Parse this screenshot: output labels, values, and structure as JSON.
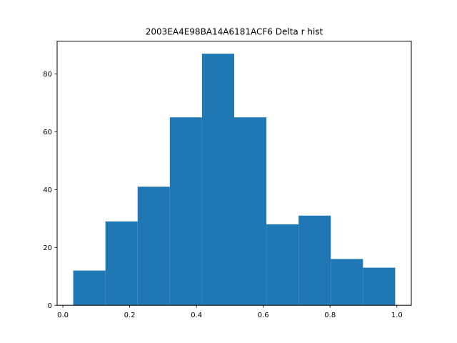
{
  "chart_data": {
    "type": "bar",
    "title": "2003EA4E98BA14A6181ACF6 Delta r hist",
    "xlabel": "",
    "ylabel": "",
    "bin_edges": [
      0.031,
      0.1274,
      0.2238,
      0.3202,
      0.4166,
      0.513,
      0.6094,
      0.7058,
      0.8022,
      0.8986,
      0.995
    ],
    "counts": [
      12,
      29,
      41,
      65,
      87,
      65,
      28,
      31,
      16,
      13
    ],
    "xlim": [
      -0.0172,
      1.0432
    ],
    "ylim": [
      0,
      91.35
    ],
    "xticks": [
      0.0,
      0.2,
      0.4,
      0.6,
      0.8,
      1.0
    ],
    "xtick_labels": [
      "0.0",
      "0.2",
      "0.4",
      "0.6",
      "0.8",
      "1.0"
    ],
    "yticks": [
      0,
      20,
      40,
      60,
      80
    ],
    "ytick_labels": [
      "0",
      "20",
      "40",
      "60",
      "80"
    ],
    "bar_color": "#1f77b4",
    "grid": false,
    "legend": "none"
  }
}
